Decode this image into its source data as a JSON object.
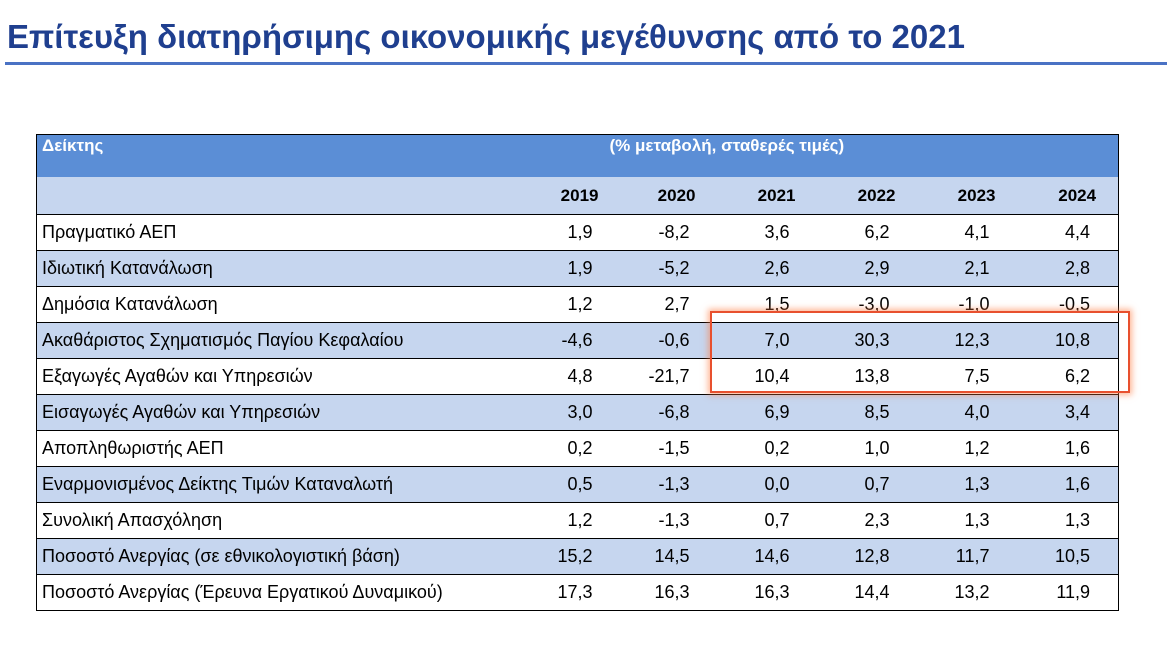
{
  "title": "Επίτευξη διατηρήσιμης οικονομικής μεγέθυνσης από το 2021",
  "table": {
    "header_label": "Δείκτης",
    "header_unit": "(% μεταβολή, σταθερές τιμές)",
    "years": [
      "2019",
      "2020",
      "2021",
      "2022",
      "2023",
      "2024"
    ],
    "rows": [
      {
        "label": "Πραγματικό ΑΕΠ",
        "values": [
          "1,9",
          "-8,2",
          "3,6",
          "6,2",
          "4,1",
          "4,4"
        ]
      },
      {
        "label": "Ιδιωτική Κατανάλωση",
        "values": [
          "1,9",
          "-5,2",
          "2,6",
          "2,9",
          "2,1",
          "2,8"
        ]
      },
      {
        "label": "Δημόσια Κατανάλωση",
        "values": [
          "1,2",
          "2,7",
          "1,5",
          "-3,0",
          "-1,0",
          "-0,5"
        ]
      },
      {
        "label": "Ακαθάριστος Σχηματισμός Παγίου Κεφαλαίου",
        "values": [
          "-4,6",
          "-0,6",
          "7,0",
          "30,3",
          "12,3",
          "10,8"
        ]
      },
      {
        "label": "Εξαγωγές Αγαθών και Υπηρεσιών",
        "values": [
          "4,8",
          "-21,7",
          "10,4",
          "13,8",
          "7,5",
          "6,2"
        ]
      },
      {
        "label": "Εισαγωγές Αγαθών και Υπηρεσιών",
        "values": [
          "3,0",
          "-6,8",
          "6,9",
          "8,5",
          "4,0",
          "3,4"
        ]
      },
      {
        "label": "Αποπληθωριστής ΑΕΠ",
        "values": [
          "0,2",
          "-1,5",
          "0,2",
          "1,0",
          "1,2",
          "1,6"
        ]
      },
      {
        "label": "Εναρμονισμένος Δείκτης Τιμών Καταναλωτή",
        "values": [
          "0,5",
          "-1,3",
          "0,0",
          "0,7",
          "1,3",
          "1,6"
        ]
      },
      {
        "label": "Συνολική Απασχόληση",
        "values": [
          "1,2",
          "-1,3",
          "0,7",
          "2,3",
          "1,3",
          "1,3"
        ]
      },
      {
        "label": "Ποσοστό Ανεργίας (σε εθνικολογιστική βάση)",
        "values": [
          "15,2",
          "14,5",
          "14,6",
          "12,8",
          "11,7",
          "10,5"
        ]
      },
      {
        "label": "Ποσοστό Ανεργίας (Έρευνα Εργατικού Δυναμικού)",
        "values": [
          "17,3",
          "16,3",
          "16,3",
          "14,4",
          "13,2",
          "11,9"
        ]
      }
    ]
  },
  "colors": {
    "title": "#1f3f8f",
    "header_dark": "#5b8ed6",
    "band_light": "#c6d6ef",
    "highlight": "#e8502e"
  }
}
